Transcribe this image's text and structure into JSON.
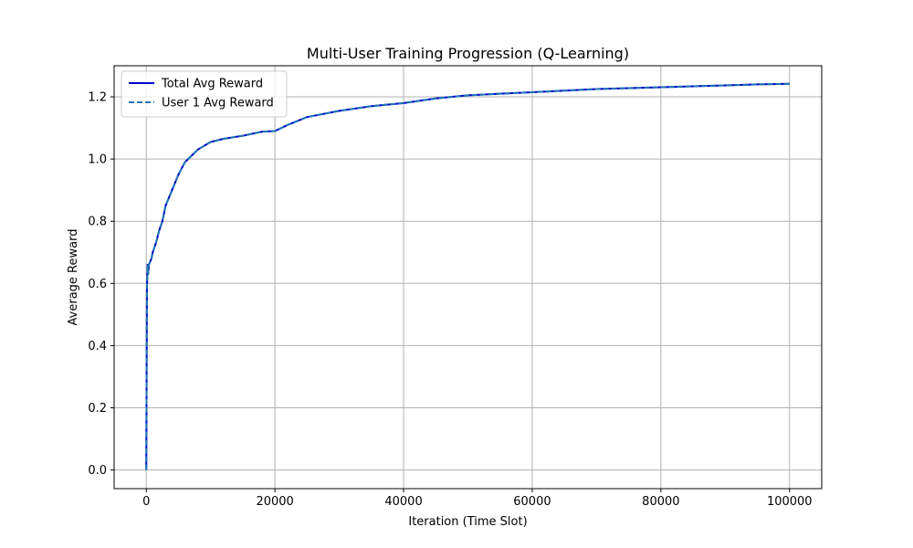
{
  "chart_data": {
    "type": "line",
    "title": "Multi-User Training Progression (Q-Learning)",
    "xlabel": "Iteration (Time Slot)",
    "ylabel": "Average Reward",
    "xlim": [
      -5000,
      105000
    ],
    "ylim": [
      -0.06,
      1.3
    ],
    "xticks": [
      0,
      20000,
      40000,
      60000,
      80000,
      100000
    ],
    "xtick_labels": [
      "0",
      "20000",
      "40000",
      "60000",
      "80000",
      "100000"
    ],
    "yticks": [
      0.0,
      0.2,
      0.4,
      0.6,
      0.8,
      1.0,
      1.2
    ],
    "ytick_labels": [
      "0.0",
      "0.2",
      "0.4",
      "0.6",
      "0.8",
      "1.0",
      "1.2"
    ],
    "grid": true,
    "legend_position": "upper-left",
    "x": [
      0,
      100,
      200,
      300,
      400,
      600,
      800,
      1000,
      1500,
      2000,
      2500,
      3000,
      4000,
      5000,
      6000,
      7000,
      8000,
      10000,
      12000,
      15000,
      18000,
      20000,
      22000,
      25000,
      30000,
      35000,
      40000,
      45000,
      50000,
      55000,
      60000,
      65000,
      70000,
      75000,
      80000,
      85000,
      90000,
      95000,
      100000
    ],
    "series": [
      {
        "name": "Total Avg Reward",
        "color": "#0000cc",
        "style": "solid",
        "values": [
          0.0,
          0.58,
          0.66,
          0.63,
          0.66,
          0.67,
          0.68,
          0.7,
          0.73,
          0.77,
          0.8,
          0.85,
          0.9,
          0.95,
          0.99,
          1.01,
          1.03,
          1.055,
          1.065,
          1.075,
          1.088,
          1.09,
          1.11,
          1.135,
          1.155,
          1.17,
          1.18,
          1.195,
          1.205,
          1.21,
          1.215,
          1.22,
          1.225,
          1.228,
          1.231,
          1.234,
          1.237,
          1.24,
          1.242
        ]
      },
      {
        "name": "User 1 Avg Reward",
        "color": "#1f77b4",
        "style": "dashed",
        "values": [
          0.0,
          0.58,
          0.66,
          0.63,
          0.66,
          0.67,
          0.68,
          0.7,
          0.73,
          0.77,
          0.8,
          0.85,
          0.9,
          0.95,
          0.99,
          1.01,
          1.03,
          1.055,
          1.065,
          1.075,
          1.088,
          1.09,
          1.11,
          1.135,
          1.155,
          1.17,
          1.18,
          1.195,
          1.205,
          1.21,
          1.215,
          1.22,
          1.225,
          1.228,
          1.231,
          1.234,
          1.237,
          1.24,
          1.242
        ]
      }
    ]
  }
}
